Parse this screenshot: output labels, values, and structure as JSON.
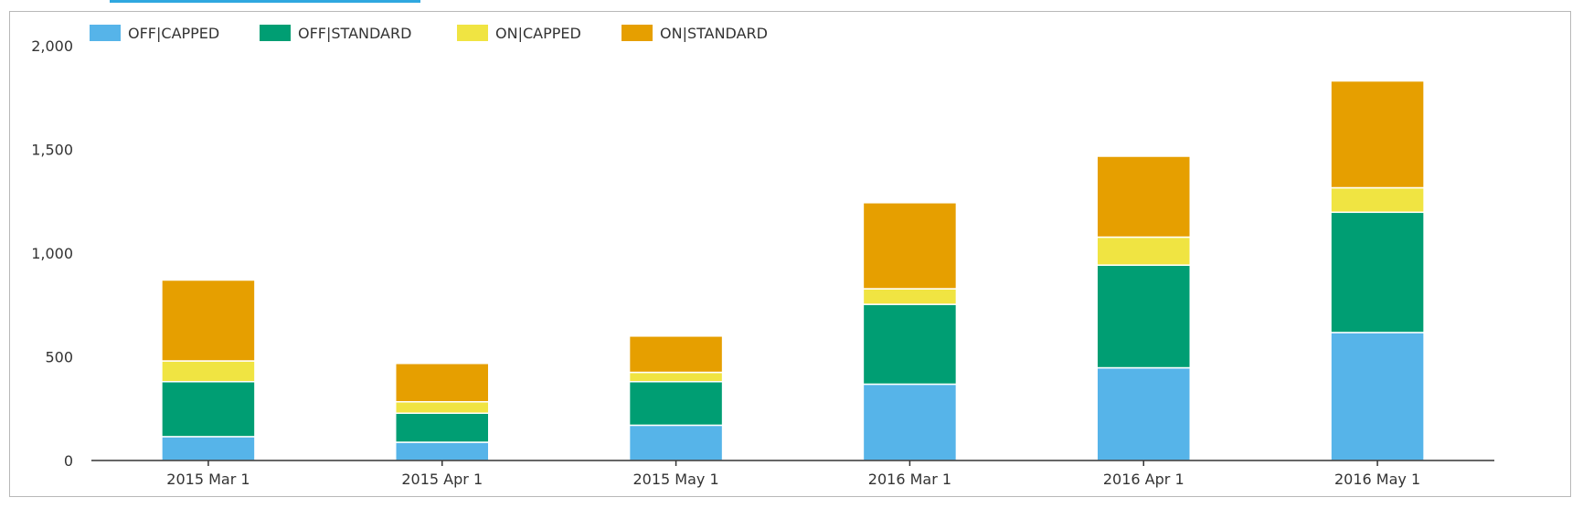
{
  "chart_data": {
    "type": "bar",
    "stacked": true,
    "categories": [
      "2015 Mar 1",
      "2015 Apr 1",
      "2015 May 1",
      "2016 Mar 1",
      "2016 Apr 1",
      "2016 May 1"
    ],
    "series": [
      {
        "name": "OFF|CAPPED",
        "color": "#56b4e9",
        "values": [
          115,
          88,
          170,
          368,
          447,
          617
        ]
      },
      {
        "name": "OFF|STANDARD",
        "color": "#009e73",
        "values": [
          265,
          140,
          210,
          385,
          495,
          580
        ]
      },
      {
        "name": "ON|CAPPED",
        "color": "#f0e442",
        "values": [
          100,
          55,
          45,
          75,
          135,
          118
        ]
      },
      {
        "name": "ON|STANDARD",
        "color": "#e69f00",
        "values": [
          390,
          185,
          175,
          415,
          390,
          515
        ]
      }
    ],
    "ylim": [
      0,
      2000
    ],
    "yticks": [
      0,
      500,
      1000,
      1500,
      2000
    ],
    "ytick_labels": [
      "0",
      "500",
      "1,000",
      "1,500",
      "2,000"
    ],
    "legend_position": "top-left",
    "grid": false
  }
}
